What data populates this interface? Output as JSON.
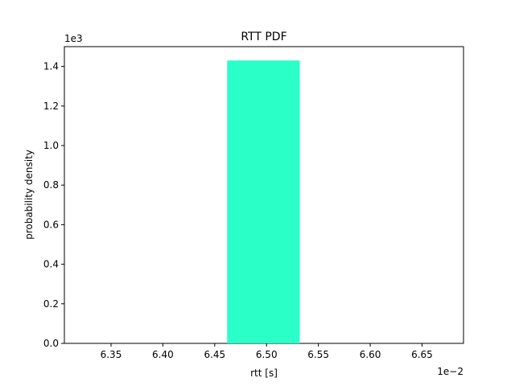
{
  "chart_data": {
    "type": "bar",
    "title": "RTT PDF",
    "xlabel": "rtt [s]",
    "ylabel": "probability density",
    "x_offset_label": "1e−2",
    "y_offset_label": "1e3",
    "xlim": [
      6.305,
      6.69
    ],
    "ylim": [
      0,
      1.5
    ],
    "xticks": [
      6.35,
      6.4,
      6.45,
      6.5,
      6.55,
      6.6,
      6.65
    ],
    "xtick_labels": [
      "6.35",
      "6.40",
      "6.45",
      "6.50",
      "6.55",
      "6.60",
      "6.65"
    ],
    "yticks": [
      0.0,
      0.2,
      0.4,
      0.6,
      0.8,
      1.0,
      1.2,
      1.4
    ],
    "ytick_labels": [
      "0.0",
      "0.2",
      "0.4",
      "0.6",
      "0.8",
      "1.0",
      "1.2",
      "1.4"
    ],
    "bins": [
      {
        "x_start": 6.462,
        "x_end": 6.532,
        "value": 1.43
      }
    ],
    "bar_color": "#2affc8",
    "grid": false,
    "legend": "none"
  }
}
